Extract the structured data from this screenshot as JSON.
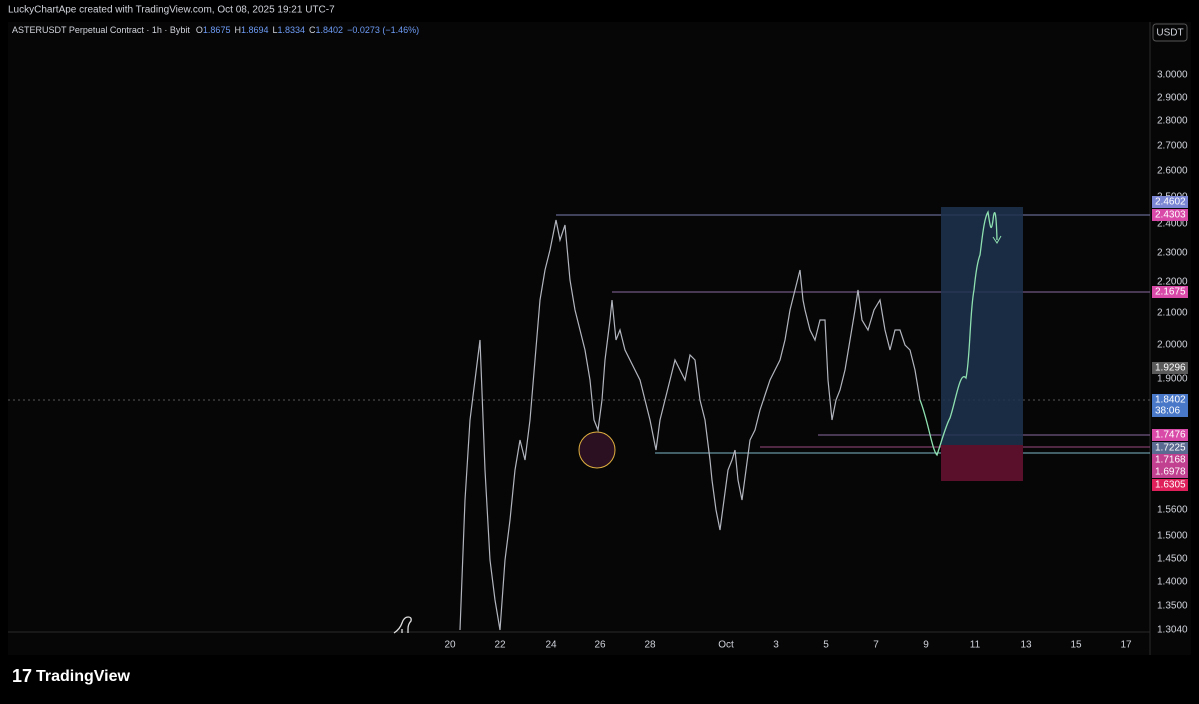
{
  "header": {
    "credit": "LuckyChartApe created with TradingView.com, Oct 08, 2025 19:21 UTC-7"
  },
  "legend": {
    "symbol": "ASTERUSDT Perpetual Contract · 1h · Bybit",
    "open_label": "O",
    "open": "1.8675",
    "high_label": "H",
    "high": "1.8694",
    "low_label": "L",
    "low": "1.8334",
    "close_label": "C",
    "close": "1.8402",
    "change": "−0.0273 (−1.46%)"
  },
  "currency": "USDT",
  "price_axis": [
    "3.0000",
    "2.9000",
    "2.8000",
    "2.7000",
    "2.6000",
    "2.5000",
    "2.4000",
    "2.3000",
    "2.2000",
    "2.1000",
    "2.0000",
    "1.9000",
    "1.5600",
    "1.5000",
    "1.4500",
    "1.4000",
    "1.3500",
    "1.3040"
  ],
  "price_tags": [
    "2.4602",
    "2.4303",
    "2.1675",
    "1.9296",
    "1.8402",
    "38:06",
    "1.7476",
    "1.7225",
    "1.7168",
    "1.6978",
    "1.6305"
  ],
  "time_axis": [
    "20",
    "22",
    "24",
    "26",
    "28",
    "Oct",
    "3",
    "5",
    "7",
    "9",
    "11",
    "13",
    "15",
    "17"
  ],
  "footer": {
    "brand": "TradingView"
  }
}
